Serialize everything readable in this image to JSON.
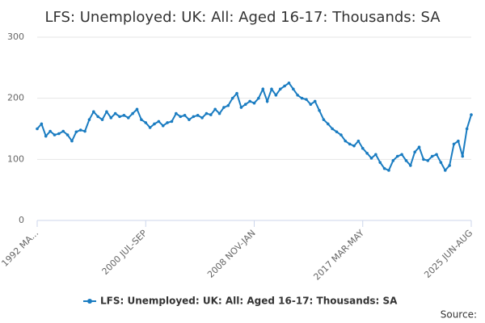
{
  "chart_data": {
    "type": "line",
    "title": "LFS: Unemployed: UK: All: Aged 16-17: Thousands: SA",
    "source": "Source:",
    "categories": [
      "1992 MA...",
      null,
      null,
      null,
      null,
      null,
      null,
      null,
      null,
      null,
      null,
      null,
      null,
      null,
      null,
      null,
      null,
      null,
      null,
      null,
      null,
      null,
      null,
      null,
      null,
      "2000 JUL-SEP",
      null,
      null,
      null,
      null,
      null,
      null,
      null,
      null,
      null,
      null,
      null,
      null,
      null,
      null,
      null,
      null,
      null,
      null,
      null,
      null,
      null,
      null,
      null,
      null,
      "2008 NOV-JAN",
      null,
      null,
      null,
      null,
      null,
      null,
      null,
      null,
      null,
      null,
      null,
      null,
      null,
      null,
      null,
      null,
      null,
      null,
      null,
      null,
      null,
      null,
      null,
      null,
      "2017 MAR-MAY",
      null,
      null,
      null,
      null,
      null,
      null,
      null,
      null,
      null,
      null,
      null,
      null,
      null,
      null,
      null,
      null,
      null,
      null,
      null,
      null,
      null,
      null,
      null,
      null,
      "2025 JUN-AUG"
    ],
    "series": [
      {
        "name": "LFS: Unemployed: UK: All: Aged 16-17: Thousands: SA",
        "color": "#1a7cc1",
        "values": [
          150,
          158,
          138,
          146,
          140,
          142,
          146,
          140,
          130,
          145,
          148,
          146,
          165,
          178,
          170,
          165,
          178,
          168,
          175,
          170,
          172,
          168,
          175,
          182,
          165,
          160,
          152,
          158,
          162,
          155,
          160,
          162,
          175,
          170,
          172,
          165,
          170,
          172,
          168,
          175,
          173,
          182,
          175,
          185,
          188,
          200,
          208,
          185,
          190,
          195,
          192,
          200,
          215,
          195,
          215,
          205,
          215,
          220,
          225,
          215,
          205,
          200,
          198,
          190,
          195,
          180,
          165,
          158,
          150,
          145,
          140,
          130,
          125,
          122,
          130,
          118,
          110,
          102,
          108,
          95,
          85,
          82,
          98,
          105,
          108,
          98,
          90,
          112,
          120,
          100,
          98,
          105,
          108,
          95,
          82,
          90,
          125,
          130,
          105,
          150,
          173
        ]
      }
    ],
    "ylim": [
      0,
      300
    ],
    "yticks": [
      0,
      100,
      200,
      300
    ],
    "grid": true
  }
}
